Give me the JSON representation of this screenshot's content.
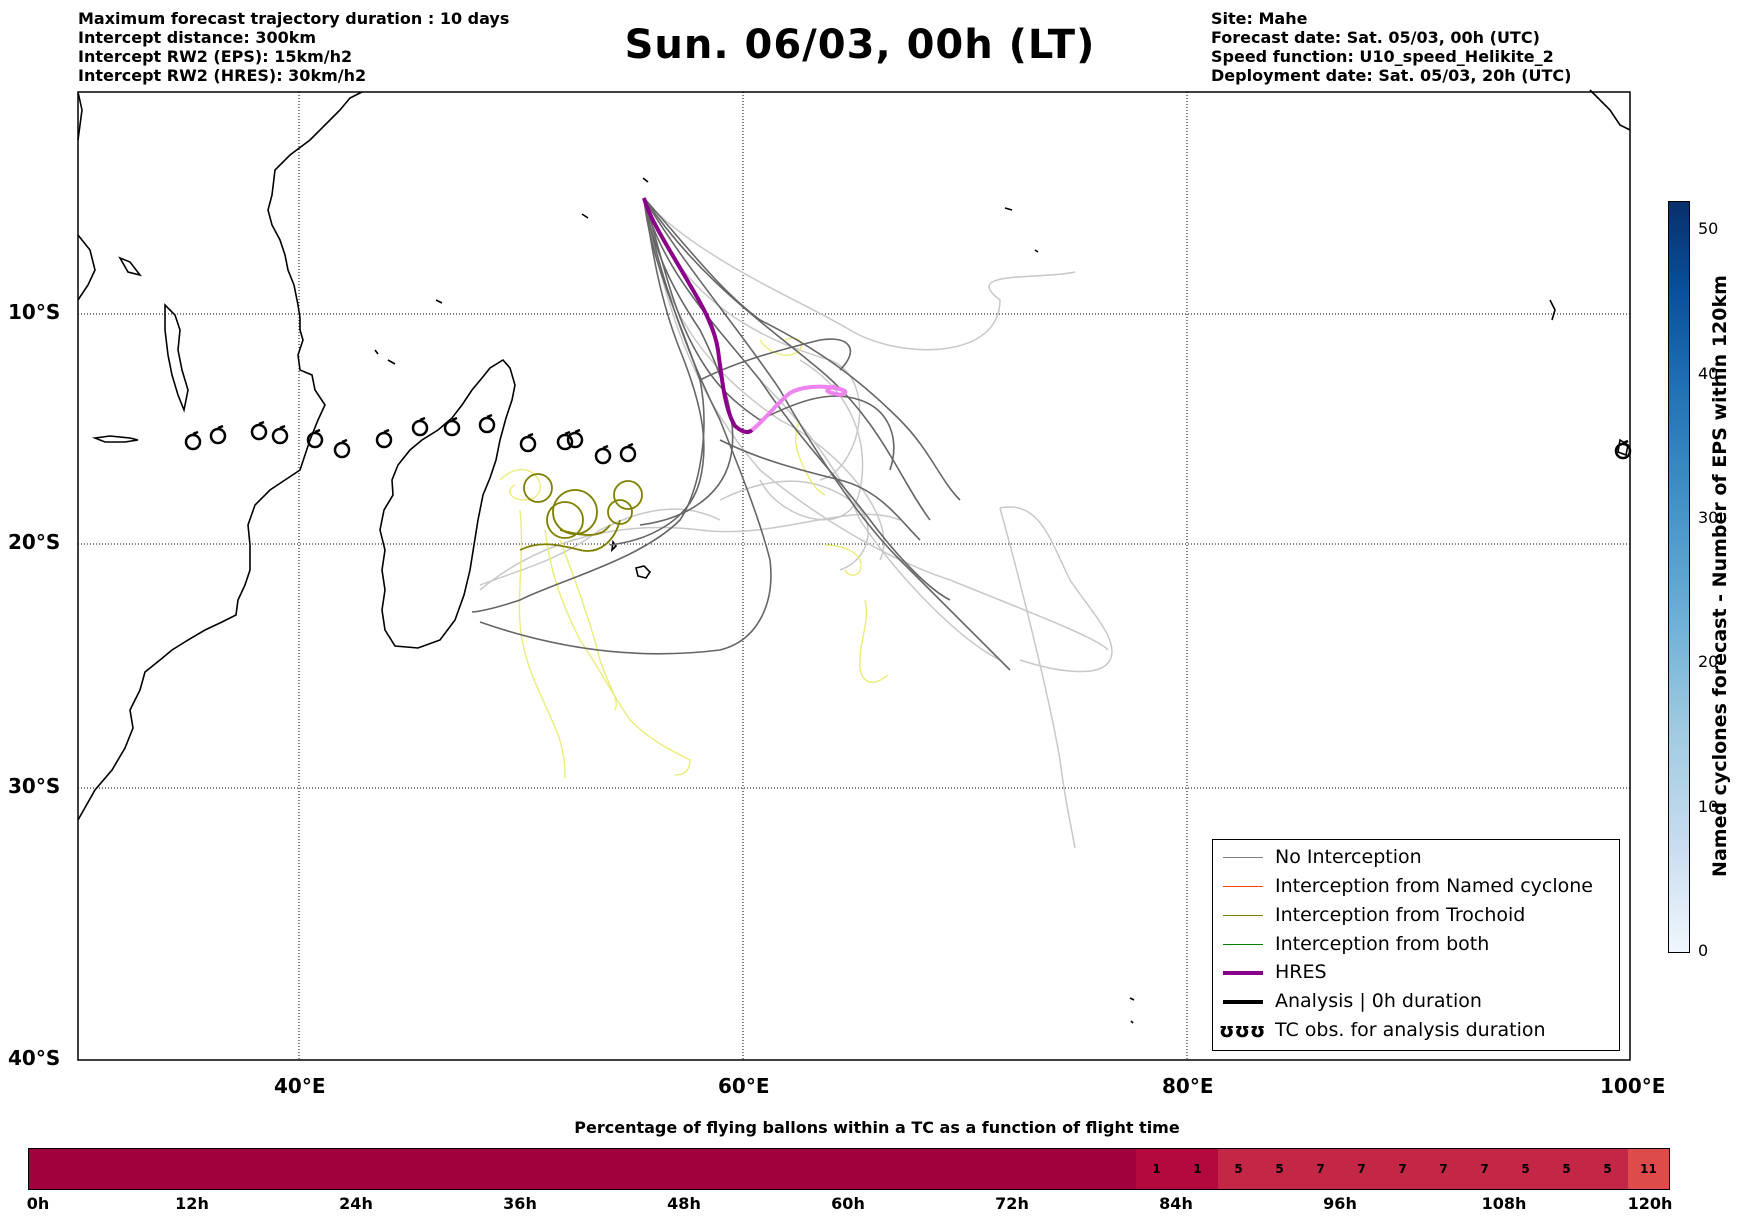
{
  "header_left": [
    "Maximum forecast trajectory duration : 10 days",
    "Intercept distance: 300km",
    "Intercept RW2 (EPS):  15km/h2",
    "Intercept RW2 (HRES): 30km/h2"
  ],
  "header_right": [
    "Site: Mahe",
    "Forecast date: Sat. 05/03, 00h (UTC)",
    "Speed function: U10_speed_Helikite_2",
    "Deployment date: Sat. 05/03, 20h (UTC)"
  ],
  "title": "Sun. 06/03, 00h (LT)",
  "map": {
    "lat_labels": [
      "10°S",
      "20°S",
      "30°S",
      "40°S"
    ],
    "lon_labels": [
      "40°E",
      "60°E",
      "80°E",
      "100°E"
    ],
    "extent": {
      "lon_min": 30,
      "lon_max": 100,
      "lat_min": -40,
      "lat_max": 0
    },
    "gridlines": "dotted",
    "colors": {
      "no_interception_dark": "#666666",
      "no_interception_light": "#c8c8c8",
      "trochoid": "#7f7f00",
      "trochoid_light": "#ecec7a",
      "hres": "#8b008b",
      "hres_light": "#ee82ee",
      "named_cyclone": "#ff4500",
      "both": "#008000"
    }
  },
  "legend": [
    {
      "label": "No Interception",
      "color": "#808080",
      "width": 1
    },
    {
      "label": "Interception from Named cyclone",
      "color": "#ff4500",
      "width": 1
    },
    {
      "label": "Interception from Trochoid",
      "color": "#7f7f00",
      "width": 1
    },
    {
      "label": "Interception from both",
      "color": "#008000",
      "width": 1
    },
    {
      "label": "HRES",
      "color": "#8b008b",
      "width": 4
    },
    {
      "label": "Analysis | 0h duration",
      "color": "#000000",
      "width": 4
    },
    {
      "label": "TC obs. for analysis duration",
      "icon": "ʊʊʊ"
    }
  ],
  "colorbar": {
    "label": "Named cyclones forecast - Number of EPS within 120km",
    "ticks": [
      "0",
      "10",
      "20",
      "30",
      "40",
      "50"
    ],
    "range": [
      0,
      52
    ],
    "colormap": "Blues"
  },
  "flight_bar": {
    "title": "Percentage of flying ballons within a TC as a function of flight time",
    "tick_labels": [
      "0h",
      "12h",
      "24h",
      "36h",
      "48h",
      "60h",
      "72h",
      "84h",
      "96h",
      "108h",
      "120h"
    ],
    "base_color": "#a0003c",
    "empty_hours": 81,
    "cells": [
      {
        "value": "1",
        "color": "#b3093f"
      },
      {
        "value": "1",
        "color": "#b3093f"
      },
      {
        "value": "5",
        "color": "#c42645"
      },
      {
        "value": "5",
        "color": "#c42645"
      },
      {
        "value": "7",
        "color": "#c42645"
      },
      {
        "value": "7",
        "color": "#c42645"
      },
      {
        "value": "7",
        "color": "#c42645"
      },
      {
        "value": "7",
        "color": "#c42645"
      },
      {
        "value": "7",
        "color": "#c42645"
      },
      {
        "value": "5",
        "color": "#c42645"
      },
      {
        "value": "5",
        "color": "#c42645"
      },
      {
        "value": "5",
        "color": "#c42645"
      },
      {
        "value": "11",
        "color": "#dd4b4b"
      }
    ]
  }
}
